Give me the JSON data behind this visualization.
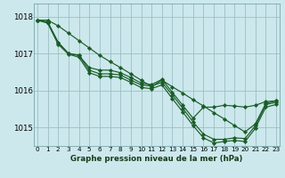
{
  "background_color": "#cce8ec",
  "grid_color": "#9bbfc4",
  "line_color": "#1a5c28",
  "marker_color": "#1a5c28",
  "x_ticks": [
    0,
    1,
    2,
    3,
    4,
    5,
    6,
    7,
    8,
    9,
    10,
    11,
    12,
    13,
    14,
    15,
    16,
    17,
    18,
    19,
    20,
    21,
    22,
    23
  ],
  "y_ticks": [
    1015,
    1016,
    1017,
    1018
  ],
  "ylim": [
    1014.5,
    1018.35
  ],
  "xlim": [
    -0.3,
    23.3
  ],
  "xlabel": "Graphe pression niveau de la mer (hPa)",
  "series": [
    [
      1017.9,
      1017.9,
      1017.75,
      1017.55,
      1017.35,
      1017.15,
      1016.95,
      1016.78,
      1016.62,
      1016.45,
      1016.28,
      1016.1,
      1016.28,
      1016.1,
      1015.93,
      1015.75,
      1015.58,
      1015.4,
      1015.23,
      1015.05,
      1014.88,
      1015.1,
      1015.65,
      1015.72
    ],
    [
      1017.9,
      1017.85,
      1017.3,
      1017.0,
      1016.95,
      1016.62,
      1016.55,
      1016.55,
      1016.48,
      1016.35,
      1016.2,
      1016.16,
      1016.3,
      1015.95,
      1015.6,
      1015.25,
      1015.55,
      1015.55,
      1015.6,
      1015.58,
      1015.55,
      1015.6,
      1015.7,
      1015.72
    ],
    [
      1017.9,
      1017.85,
      1017.3,
      1017.0,
      1016.95,
      1016.55,
      1016.45,
      1016.45,
      1016.42,
      1016.28,
      1016.15,
      1016.12,
      1016.22,
      1015.88,
      1015.52,
      1015.15,
      1014.82,
      1014.68,
      1014.68,
      1014.72,
      1014.7,
      1015.05,
      1015.62,
      1015.68
    ],
    [
      1017.9,
      1017.82,
      1017.25,
      1016.98,
      1016.9,
      1016.48,
      1016.38,
      1016.38,
      1016.35,
      1016.22,
      1016.08,
      1016.05,
      1016.15,
      1015.78,
      1015.42,
      1015.05,
      1014.72,
      1014.58,
      1014.62,
      1014.65,
      1014.62,
      1014.98,
      1015.55,
      1015.62
    ]
  ]
}
